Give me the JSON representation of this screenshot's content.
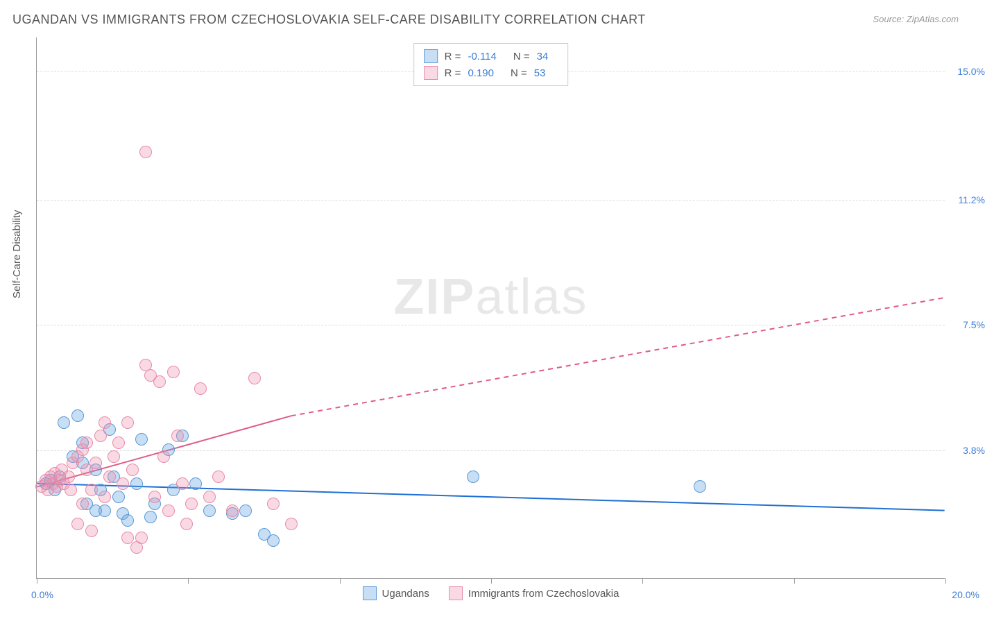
{
  "title": "UGANDAN VS IMMIGRANTS FROM CZECHOSLOVAKIA SELF-CARE DISABILITY CORRELATION CHART",
  "source_label": "Source: ZipAtlas.com",
  "y_axis_label": "Self-Care Disability",
  "watermark": {
    "part1": "ZIP",
    "part2": "atlas"
  },
  "chart": {
    "type": "scatter",
    "background_color": "#ffffff",
    "grid_color": "#dddddd",
    "axis_color": "#999999",
    "xlim": [
      0,
      20
    ],
    "ylim": [
      0,
      16
    ],
    "x_ticks": [
      0,
      3.33,
      6.67,
      10,
      13.33,
      16.67,
      20
    ],
    "x_origin_label": "0.0%",
    "x_max_label": "20.0%",
    "y_grid": [
      {
        "value": 15.0,
        "label": "15.0%"
      },
      {
        "value": 11.2,
        "label": "11.2%"
      },
      {
        "value": 7.5,
        "label": "7.5%"
      },
      {
        "value": 3.8,
        "label": "3.8%"
      }
    ],
    "series": [
      {
        "id": "ugandans",
        "label": "Ugandans",
        "marker_fill": "rgba(96,160,224,0.35)",
        "marker_stroke": "#5b9bd5",
        "marker_size": 18,
        "r_value": "-0.114",
        "n_value": "34",
        "trend": {
          "color": "#1f6fd4",
          "width": 2,
          "solid_from_x": 0,
          "solid_to_x": 20,
          "y_at_x0": 2.8,
          "y_at_xmax": 2.0,
          "dashed_extension": false
        },
        "points": [
          [
            0.2,
            2.8
          ],
          [
            0.4,
            2.6
          ],
          [
            0.3,
            2.9
          ],
          [
            0.5,
            3.0
          ],
          [
            0.6,
            4.6
          ],
          [
            0.9,
            4.8
          ],
          [
            1.0,
            4.0
          ],
          [
            1.0,
            3.4
          ],
          [
            1.1,
            2.2
          ],
          [
            1.3,
            2.0
          ],
          [
            1.3,
            3.2
          ],
          [
            1.4,
            2.6
          ],
          [
            1.5,
            2.0
          ],
          [
            1.6,
            4.4
          ],
          [
            1.8,
            2.4
          ],
          [
            1.9,
            1.9
          ],
          [
            2.0,
            1.7
          ],
          [
            2.2,
            2.8
          ],
          [
            2.3,
            4.1
          ],
          [
            2.5,
            1.8
          ],
          [
            2.6,
            2.2
          ],
          [
            2.9,
            3.8
          ],
          [
            3.0,
            2.6
          ],
          [
            3.2,
            4.2
          ],
          [
            3.5,
            2.8
          ],
          [
            3.8,
            2.0
          ],
          [
            4.3,
            1.9
          ],
          [
            4.6,
            2.0
          ],
          [
            5.0,
            1.3
          ],
          [
            5.2,
            1.1
          ],
          [
            9.6,
            3.0
          ],
          [
            14.6,
            2.7
          ],
          [
            0.8,
            3.6
          ],
          [
            1.7,
            3.0
          ]
        ]
      },
      {
        "id": "czechoslovakia",
        "label": "Immigrants from Czechoslovakia",
        "marker_fill": "rgba(236,140,170,0.32)",
        "marker_stroke": "#e88ba8",
        "marker_size": 18,
        "r_value": "0.190",
        "n_value": "53",
        "trend": {
          "color": "#e05b86",
          "width": 2,
          "solid_from_x": 0,
          "solid_to_x": 5.6,
          "y_at_x0": 2.7,
          "y_at_solid_end": 4.8,
          "dashed_extension": true,
          "dashed_to_x": 20,
          "y_at_dashed_end": 8.3
        },
        "points": [
          [
            0.1,
            2.7
          ],
          [
            0.2,
            2.9
          ],
          [
            0.25,
            2.6
          ],
          [
            0.3,
            3.0
          ],
          [
            0.35,
            2.8
          ],
          [
            0.4,
            3.1
          ],
          [
            0.45,
            2.7
          ],
          [
            0.5,
            2.9
          ],
          [
            0.55,
            3.2
          ],
          [
            0.6,
            2.8
          ],
          [
            0.7,
            3.0
          ],
          [
            0.75,
            2.6
          ],
          [
            0.8,
            3.4
          ],
          [
            0.9,
            3.6
          ],
          [
            1.0,
            3.8
          ],
          [
            1.1,
            4.0
          ],
          [
            1.1,
            3.2
          ],
          [
            1.2,
            2.6
          ],
          [
            1.3,
            3.4
          ],
          [
            1.4,
            4.2
          ],
          [
            1.5,
            4.6
          ],
          [
            1.5,
            2.4
          ],
          [
            1.6,
            3.0
          ],
          [
            1.7,
            3.6
          ],
          [
            1.8,
            4.0
          ],
          [
            1.9,
            2.8
          ],
          [
            2.0,
            4.6
          ],
          [
            2.1,
            3.2
          ],
          [
            2.2,
            0.9
          ],
          [
            2.3,
            1.2
          ],
          [
            2.4,
            6.3
          ],
          [
            2.5,
            6.0
          ],
          [
            2.6,
            2.4
          ],
          [
            2.7,
            5.8
          ],
          [
            2.8,
            3.6
          ],
          [
            2.9,
            2.0
          ],
          [
            3.0,
            6.1
          ],
          [
            3.1,
            4.2
          ],
          [
            3.2,
            2.8
          ],
          [
            3.3,
            1.6
          ],
          [
            3.4,
            2.2
          ],
          [
            3.6,
            5.6
          ],
          [
            3.8,
            2.4
          ],
          [
            4.0,
            3.0
          ],
          [
            4.3,
            2.0
          ],
          [
            4.8,
            5.9
          ],
          [
            5.2,
            2.2
          ],
          [
            5.6,
            1.6
          ],
          [
            2.0,
            1.2
          ],
          [
            2.4,
            12.6
          ],
          [
            1.0,
            2.2
          ],
          [
            1.2,
            1.4
          ],
          [
            0.9,
            1.6
          ]
        ]
      }
    ],
    "stats_legend_swatch_labels": {
      "r": "R =",
      "n": "N ="
    },
    "legend_swatch_size": 20
  }
}
